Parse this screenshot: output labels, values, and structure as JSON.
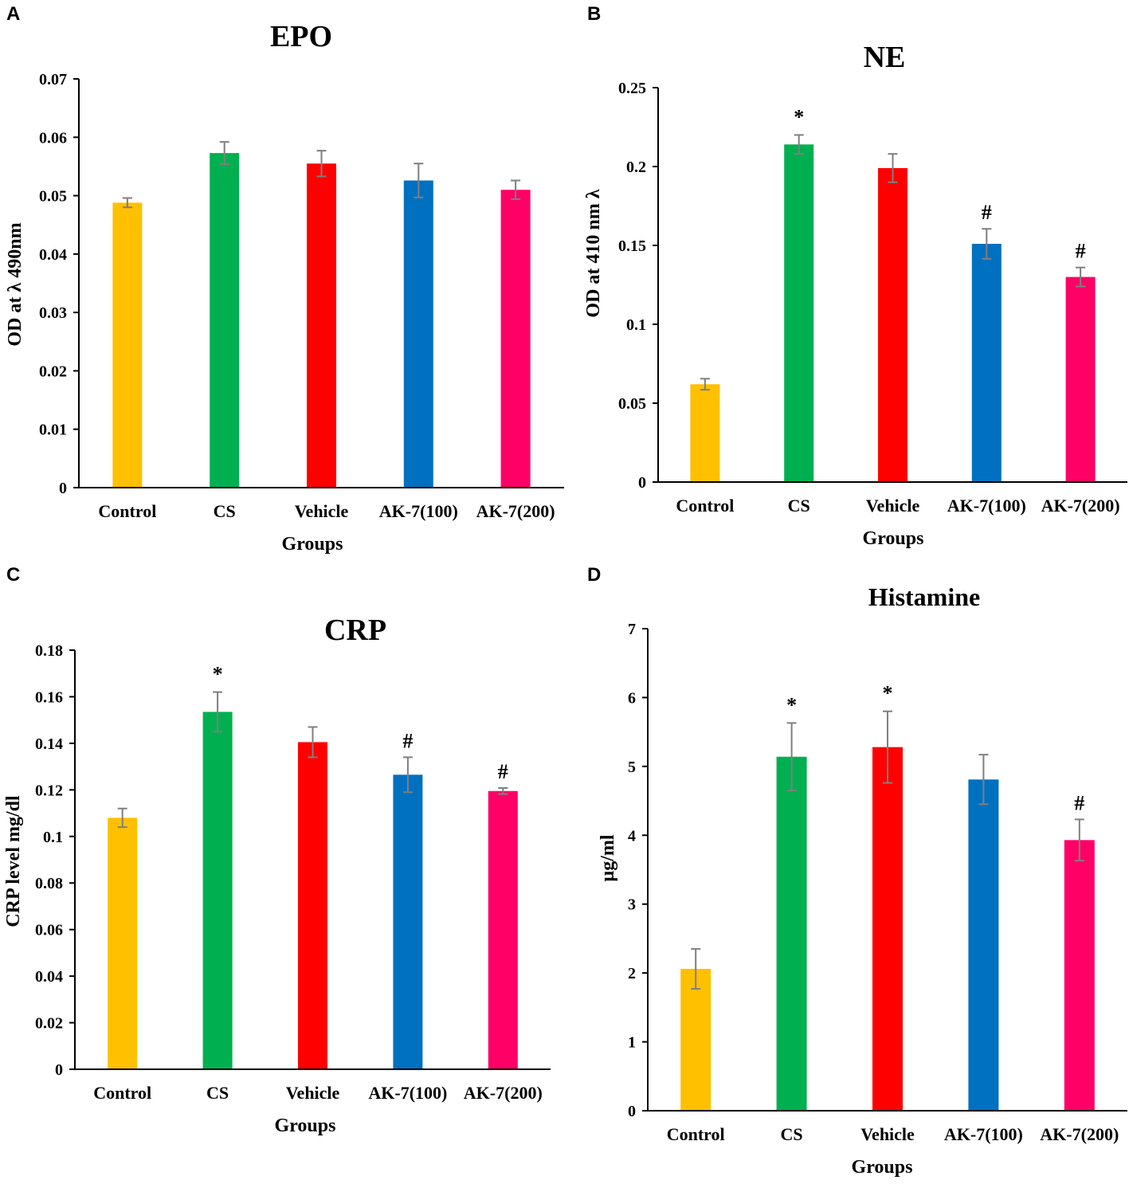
{
  "colors": {
    "bars": [
      "#FFC000",
      "#00B050",
      "#FF0000",
      "#0070C0",
      "#FF0066"
    ],
    "error_bar": "#7f7f7f",
    "axis": "#000000"
  },
  "chart_data": [
    {
      "panel": "A",
      "type": "bar",
      "title": "EPO",
      "xlabel": "Groups",
      "ylabel": "OD at λ 490nm",
      "categories": [
        "Control",
        "CS",
        "Vehicle",
        "AK-7(100)",
        "AK-7(200)"
      ],
      "values": [
        0.0488,
        0.0573,
        0.0555,
        0.0526,
        0.051
      ],
      "errors": [
        0.0008,
        0.0019,
        0.0022,
        0.0029,
        0.0016
      ],
      "annotations": [
        "",
        "",
        "",
        "",
        ""
      ],
      "ylim": [
        0,
        0.07
      ],
      "yticks": [
        0,
        0.01,
        0.02,
        0.03,
        0.04,
        0.05,
        0.06,
        0.07
      ],
      "ytick_labels": [
        "0",
        "0.01",
        "0.02",
        "0.03",
        "0.04",
        "0.05",
        "0.06",
        "0.07"
      ]
    },
    {
      "panel": "B",
      "type": "bar",
      "title": "NE",
      "xlabel": "Groups",
      "ylabel": "OD at 410 nm λ",
      "categories": [
        "Control",
        "CS",
        "Vehicle",
        "AK-7(100)",
        "AK-7(200)"
      ],
      "values": [
        0.062,
        0.214,
        0.199,
        0.151,
        0.13
      ],
      "errors": [
        0.0035,
        0.006,
        0.009,
        0.0095,
        0.006
      ],
      "annotations": [
        "",
        "*",
        "",
        "#",
        "#"
      ],
      "ylim": [
        0,
        0.25
      ],
      "yticks": [
        0,
        0.05,
        0.1,
        0.15,
        0.2,
        0.25
      ],
      "ytick_labels": [
        "0",
        "0.05",
        "0.1",
        "0.15",
        "0.2",
        "0.25"
      ]
    },
    {
      "panel": "C",
      "type": "bar",
      "title": "CRP",
      "xlabel": "Groups",
      "ylabel": "CRP level mg/dl",
      "categories": [
        "Control",
        "CS",
        "Vehicle",
        "AK-7(100)",
        "AK-7(200)"
      ],
      "values": [
        0.108,
        0.1535,
        0.1405,
        0.1265,
        0.1195
      ],
      "errors": [
        0.004,
        0.0085,
        0.0065,
        0.0075,
        0.0013
      ],
      "annotations": [
        "",
        "*",
        "",
        "#",
        "#"
      ],
      "ylim": [
        0,
        0.18
      ],
      "yticks": [
        0,
        0.02,
        0.04,
        0.06,
        0.08,
        0.1,
        0.12,
        0.14,
        0.16,
        0.18
      ],
      "ytick_labels": [
        "0",
        "0.02",
        "0.04",
        "0.06",
        "0.08",
        "0.1",
        "0.12",
        "0.14",
        "0.16",
        "0.18"
      ]
    },
    {
      "panel": "D",
      "type": "bar",
      "title": "Histamine",
      "xlabel": "Groups",
      "ylabel": "µg/ml",
      "categories": [
        "Control",
        "CS",
        "Vehicle",
        "AK-7(100)",
        "AK-7(200)"
      ],
      "values": [
        2.06,
        5.14,
        5.28,
        4.81,
        3.93
      ],
      "errors": [
        0.29,
        0.49,
        0.52,
        0.36,
        0.3
      ],
      "annotations": [
        "",
        "*",
        "*",
        "",
        "#"
      ],
      "ylim": [
        0,
        7
      ],
      "yticks": [
        0,
        1,
        2,
        3,
        4,
        5,
        6,
        7
      ],
      "ytick_labels": [
        "0",
        "1",
        "2",
        "3",
        "4",
        "5",
        "6",
        "7"
      ]
    }
  ]
}
